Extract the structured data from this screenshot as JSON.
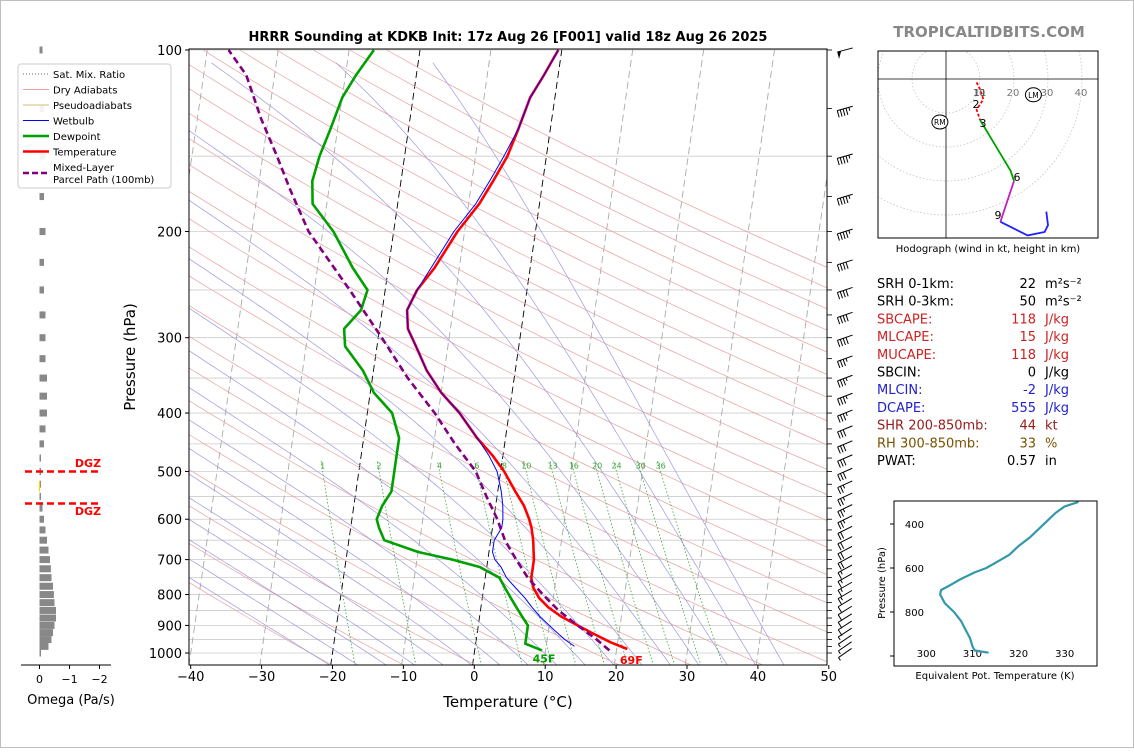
{
  "title": "HRRR Sounding at KDKB Init: 17z Aug 26 [F001] valid 18z Aug 26 2025",
  "watermark": "TROPICALTIDBITS.COM",
  "chart_data": [
    {
      "id": "skewt",
      "type": "line",
      "xlabel": "Temperature (°C)",
      "ylabel": "Pressure (hPa)",
      "xlim": [
        -40,
        50
      ],
      "ylim": [
        1050,
        100
      ],
      "y_scale": "log",
      "x_ticks": [
        -40,
        -30,
        -20,
        -10,
        0,
        10,
        20,
        30,
        40,
        50
      ],
      "x_tick_labels": [
        "−40",
        "−30",
        "−20",
        "−10",
        "0",
        "10",
        "20",
        "30",
        "40",
        "50"
      ],
      "y_ticks": [
        1000,
        900,
        800,
        700,
        600,
        500,
        400,
        300,
        200,
        100
      ],
      "y_tick_labels": [
        "1000",
        "900",
        "800",
        "700",
        "600",
        "500",
        "400",
        "300",
        "200",
        "100"
      ],
      "mixing_ratio_labels": [
        "1",
        "2",
        "4",
        "6",
        "8",
        "10",
        "13",
        "16",
        "20",
        "24",
        "30",
        "36"
      ],
      "mixing_ratio_values": [
        1,
        2,
        4,
        6,
        8,
        10,
        13,
        16,
        20,
        24,
        30,
        36
      ],
      "legend": {
        "position": "left",
        "entries": [
          "Sat. Mix. Ratio",
          "Dry Adiabats",
          "Pseudoadiabats",
          "Wetbulb",
          "Dewpoint",
          "Temperature",
          "Mixed-Layer\nParcel Path (100mb)"
        ]
      },
      "surface_labels": {
        "temperature": "69F",
        "dewpoint": "45F"
      },
      "colors": {
        "temperature": "#ff0000",
        "dewpoint": "#00a000",
        "wetbulb": "#0000ff",
        "parcel": "#800080",
        "dry_adiabat": "#e8a0a0",
        "moist_adiabat": "#9a9ae0",
        "mixing_ratio": "#3aa63a"
      },
      "series": [
        {
          "name": "Temperature",
          "p": [
            985,
            960,
            930,
            900,
            870,
            840,
            810,
            780,
            750,
            720,
            700,
            680,
            650,
            620,
            600,
            570,
            540,
            500,
            470,
            440,
            400,
            370,
            340,
            310,
            290,
            270,
            250,
            230,
            200,
            180,
            165,
            150,
            135,
            120,
            110,
            100
          ],
          "t": [
            21.5,
            19,
            16.5,
            14,
            11.5,
            9.5,
            8,
            7,
            6.5,
            6.5,
            6.5,
            6.3,
            6,
            5.5,
            5,
            4,
            2.5,
            0.5,
            -1.5,
            -4,
            -7,
            -10,
            -12.5,
            -14.5,
            -16,
            -16.5,
            -15.5,
            -13.5,
            -11,
            -8.5,
            -7,
            -5.5,
            -4.5,
            -3.5,
            -2,
            -0.5
          ]
        },
        {
          "name": "Dewpoint",
          "p": [
            990,
            965,
            930,
            900,
            870,
            840,
            810,
            780,
            750,
            720,
            700,
            680,
            650,
            620,
            600,
            570,
            540,
            500,
            470,
            440,
            400,
            370,
            340,
            310,
            290,
            270,
            250,
            230,
            200,
            180,
            165,
            150,
            135,
            120,
            110,
            100
          ],
          "t": [
            9.5,
            7,
            7,
            7,
            6,
            5,
            4,
            3,
            2,
            -1,
            -5,
            -10,
            -15,
            -16,
            -16.5,
            -16,
            -15,
            -15,
            -15,
            -15,
            -16.5,
            -19.5,
            -21.5,
            -24.5,
            -25,
            -23,
            -22.5,
            -25,
            -28.5,
            -32,
            -32.5,
            -32,
            -31,
            -30,
            -28.5,
            -26.5
          ]
        },
        {
          "name": "Wetbulb",
          "p": [
            975,
            950,
            920,
            900,
            870,
            840,
            810,
            780,
            750,
            720,
            700,
            680,
            650,
            620,
            600,
            570,
            540,
            500,
            470,
            440,
            400,
            370,
            340,
            310,
            290,
            270,
            250,
            230,
            200,
            180,
            165,
            150,
            135,
            120,
            110,
            100
          ],
          "t": [
            14,
            12.5,
            11,
            10,
            8.5,
            7.2,
            6,
            4.5,
            3,
            2,
            1,
            0.5,
            0.5,
            1.3,
            1.3,
            1,
            0.5,
            -0.5,
            -2,
            -4,
            -7,
            -10,
            -12.5,
            -14.5,
            -16,
            -16.5,
            -15.5,
            -14,
            -11.5,
            -9,
            -7.5,
            -6,
            -4.5,
            -3.5,
            -2,
            -0.5
          ]
        },
        {
          "name": "Mixed-Layer\nParcel Path (100mb)",
          "p": [
            990,
            950,
            900,
            850,
            800,
            750,
            700,
            650,
            600,
            550,
            500,
            450,
            400,
            350,
            300,
            250,
            200,
            170,
            150,
            130,
            110,
            100
          ],
          "t": [
            19,
            17,
            14,
            11,
            8.5,
            6,
            4,
            2,
            0.5,
            -1.5,
            -3.5,
            -7,
            -10.5,
            -15,
            -19.5,
            -25,
            -32,
            -35.5,
            -38,
            -41,
            -44,
            -47
          ]
        }
      ],
      "wind_barb_levels": [
        1000,
        975,
        950,
        925,
        900,
        875,
        850,
        825,
        800,
        775,
        750,
        725,
        700,
        675,
        650,
        625,
        600,
        575,
        550,
        525,
        500,
        475,
        450,
        425,
        400,
        375,
        350,
        325,
        300,
        275,
        250,
        225,
        200,
        175,
        150,
        125,
        100
      ]
    },
    {
      "id": "omega",
      "type": "bar",
      "xlabel": "Omega (Pa/s)",
      "xlim": [
        0.6,
        -2.2
      ],
      "x_ticks": [
        0,
        -1,
        -2
      ],
      "x_tick_labels": [
        "0",
        "−1",
        "−2"
      ],
      "dgz_label": "DGZ",
      "dgz_levels": [
        500,
        565
      ],
      "levels": [
        1000,
        975,
        950,
        925,
        900,
        875,
        850,
        825,
        800,
        775,
        750,
        725,
        700,
        675,
        650,
        625,
        600,
        575,
        550,
        525,
        500,
        475,
        450,
        425,
        400,
        375,
        350,
        325,
        300,
        275,
        250,
        225,
        200,
        175,
        150,
        125,
        100
      ],
      "values": [
        -0.02,
        -0.3,
        -0.4,
        -0.45,
        -0.5,
        -0.55,
        -0.55,
        -0.5,
        -0.48,
        -0.45,
        -0.4,
        -0.38,
        -0.35,
        -0.3,
        -0.25,
        -0.2,
        -0.15,
        -0.1,
        -0.05,
        -0.02,
        -0.02,
        -0.05,
        -0.15,
        -0.2,
        -0.25,
        -0.25,
        -0.25,
        -0.2,
        -0.2,
        -0.2,
        -0.15,
        -0.15,
        -0.2,
        -0.15,
        -0.2,
        -0.15,
        -0.1
      ]
    },
    {
      "id": "hodograph",
      "type": "line",
      "xlabel": "Hodograph (wind in kt, height in km)",
      "ring_labels": [
        "10",
        "20",
        "30",
        "40"
      ],
      "ring_values": [
        10,
        20,
        30,
        40
      ],
      "inner_label": "11",
      "height_labels": [
        "2",
        "3",
        "6",
        "9"
      ],
      "markers": [
        {
          "label": "RM",
          "u": -1.5,
          "v": -10
        },
        {
          "label": "LM",
          "u": 26,
          "v": -2
        }
      ],
      "segments": [
        {
          "color": "#ff0000",
          "u": [
            9,
            10,
            11,
            9,
            10
          ],
          "v": [
            -1,
            -3,
            -6,
            -9,
            -12
          ]
        },
        {
          "color": "#00a000",
          "u": [
            10,
            13,
            16,
            19,
            20
          ],
          "v": [
            -12,
            -17,
            -22,
            -27,
            -30
          ]
        },
        {
          "color": "#c020c0",
          "u": [
            20,
            19,
            18,
            17,
            16
          ],
          "v": [
            -30,
            -33,
            -36,
            -39,
            -42
          ]
        },
        {
          "color": "#2020ff",
          "u": [
            16,
            20,
            24,
            29,
            30,
            29.5
          ],
          "v": [
            -42,
            -44,
            -46,
            -45,
            -43,
            -39
          ]
        }
      ]
    },
    {
      "id": "theta_e",
      "type": "line",
      "xlabel": "Equivalent Pot. Temperature (K)",
      "ylabel": "Pressure (hPa)",
      "xlim": [
        293,
        337
      ],
      "ylim": [
        1000,
        300
      ],
      "x_ticks": [
        300,
        310,
        320,
        330
      ],
      "x_tick_labels": [
        "300",
        "310",
        "320",
        "330"
      ],
      "y_ticks": [
        400,
        600,
        800,
        1000
      ],
      "y_tick_labels": [
        "400",
        "600",
        "800",
        ""
      ],
      "color": "#3399aa",
      "series": [
        {
          "p": [
            985,
            975,
            955,
            920,
            880,
            840,
            800,
            760,
            720,
            700,
            680,
            650,
            620,
            600,
            570,
            540,
            500,
            460,
            420,
            380,
            350,
            320,
            300
          ],
          "theta_e": [
            313.5,
            310.5,
            310,
            309.5,
            308.5,
            307.5,
            306,
            304,
            303,
            303.2,
            305,
            307.5,
            310.5,
            313,
            315.5,
            318,
            320,
            322.5,
            324.5,
            326.5,
            328,
            330,
            333
          ]
        }
      ]
    }
  ],
  "indices": {
    "rows": [
      {
        "label": "SRH 0-1km:",
        "value": "22",
        "unit": "m²s⁻²",
        "color": "#000000"
      },
      {
        "label": "SRH 0-3km:",
        "value": "50",
        "unit": "m²s⁻²",
        "color": "#000000"
      },
      {
        "label": "SBCAPE:",
        "value": "118",
        "unit": "J/kg",
        "color": "#cc2222"
      },
      {
        "label": "MLCAPE:",
        "value": "15",
        "unit": "J/kg",
        "color": "#cc2222"
      },
      {
        "label": "MUCAPE:",
        "value": "118",
        "unit": "J/kg",
        "color": "#cc2222"
      },
      {
        "label": "SBCIN:",
        "value": "0",
        "unit": "J/kg",
        "color": "#000000"
      },
      {
        "label": "MLCIN:",
        "value": "-2",
        "unit": "J/kg",
        "color": "#2222cc"
      },
      {
        "label": "DCAPE:",
        "value": "555",
        "unit": "J/kg",
        "color": "#2222cc"
      },
      {
        "label": "SHR 200-850mb:",
        "value": "44",
        "unit": "kt",
        "color": "#991a1a"
      },
      {
        "label": "RH 300-850mb:",
        "value": "33",
        "unit": "%",
        "color": "#7a5200"
      },
      {
        "label": "PWAT:",
        "value": "0.57",
        "unit": "in",
        "color": "#000000"
      }
    ]
  }
}
